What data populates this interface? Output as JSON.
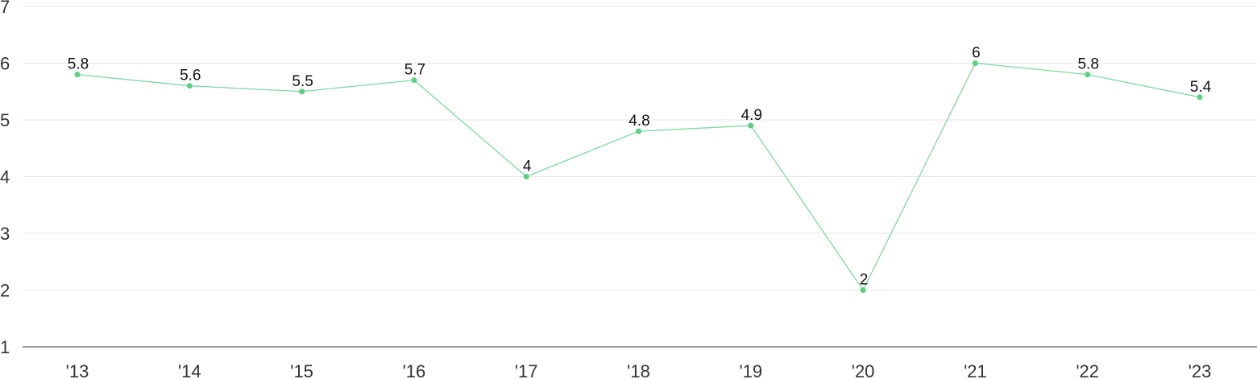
{
  "chart_data": {
    "type": "line",
    "title": "",
    "xlabel": "",
    "ylabel": "",
    "categories": [
      "'13",
      "'14",
      "'15",
      "'16",
      "'17",
      "'18",
      "'19",
      "'20",
      "'21",
      "'22",
      "'23"
    ],
    "series": [
      {
        "values": [
          5.8,
          5.6,
          5.5,
          5.7,
          4,
          4.8,
          4.9,
          2,
          6,
          5.8,
          5.4
        ],
        "data_labels": [
          "5.8",
          "5.6",
          "5.5",
          "5.7",
          "4",
          "4.8",
          "4.9",
          "2",
          "6",
          "5.8",
          "5.4"
        ]
      }
    ],
    "ylim": [
      1,
      7
    ],
    "yticks": [
      "1",
      "2",
      "3",
      "4",
      "5",
      "6",
      "7"
    ],
    "grid": true,
    "legend": "none",
    "colors": {
      "line": "#7dd9a0",
      "marker": "#5ccf86",
      "grid": "#e6e6e6",
      "axis": "#333333",
      "tick_text": "#333333",
      "label_text": "#111111"
    }
  }
}
